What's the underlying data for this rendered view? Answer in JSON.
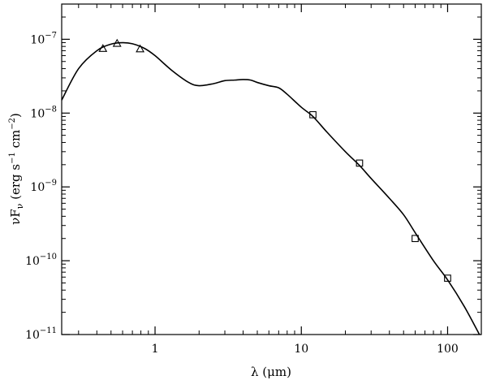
{
  "chart_data": {
    "type": "scatter",
    "title": "",
    "xlabel": "λ (μm)",
    "ylabel": "νF_ν (erg s^-1 cm^-2)",
    "x_scale": "log",
    "y_scale": "log",
    "xlim": [
      0.23,
      170
    ],
    "ylim": [
      1e-11,
      3e-07
    ],
    "grid": false,
    "legend": "none",
    "x_ticks": [
      {
        "value": 1,
        "label": "1"
      },
      {
        "value": 10,
        "label": "10"
      },
      {
        "value": 100,
        "label": "100"
      }
    ],
    "y_ticks": [
      {
        "value": 1e-07,
        "mantissa": "10",
        "exponent": "-7"
      },
      {
        "value": 1e-08,
        "mantissa": "10",
        "exponent": "-8"
      },
      {
        "value": 1e-09,
        "mantissa": "10",
        "exponent": "-9"
      },
      {
        "value": 1e-10,
        "mantissa": "10",
        "exponent": "-10"
      },
      {
        "value": 1e-11,
        "mantissa": "10",
        "exponent": "-11"
      }
    ],
    "series": [
      {
        "marker": "triangle",
        "x": [
          0.44,
          0.55,
          0.79
        ],
        "y": [
          7.5e-08,
          8.8e-08,
          7.4e-08
        ]
      },
      {
        "marker": "square",
        "x": [
          12,
          25,
          60,
          100
        ],
        "y": [
          9.5e-09,
          2.1e-09,
          2e-10,
          5.8e-11
        ]
      },
      {
        "marker": "line",
        "x": [
          0.23,
          0.3,
          0.4,
          0.5,
          0.6,
          0.7,
          0.85,
          1.0,
          1.3,
          1.7,
          2.0,
          2.5,
          3.0,
          3.5,
          4.0,
          4.5,
          5.0,
          6.0,
          7.0,
          8.0,
          10.0,
          12.0,
          15.0,
          20.0,
          25.0,
          30.0,
          40.0,
          50.0,
          60.0,
          80.0,
          100.0,
          130.0,
          165.0
        ],
        "y": [
          1.5e-08,
          4e-08,
          7e-08,
          8.6e-08,
          9e-08,
          8.7e-08,
          7.5e-08,
          6e-08,
          3.8e-08,
          2.6e-08,
          2.35e-08,
          2.5e-08,
          2.75e-08,
          2.8e-08,
          2.85e-08,
          2.8e-08,
          2.6e-08,
          2.35e-08,
          2.2e-08,
          1.8e-08,
          1.2e-08,
          9e-09,
          5.5e-09,
          3e-09,
          1.95e-09,
          1.3e-09,
          7e-10,
          4.2e-10,
          2.4e-10,
          1e-10,
          5.5e-11,
          2.4e-11,
          1e-11
        ]
      }
    ]
  }
}
